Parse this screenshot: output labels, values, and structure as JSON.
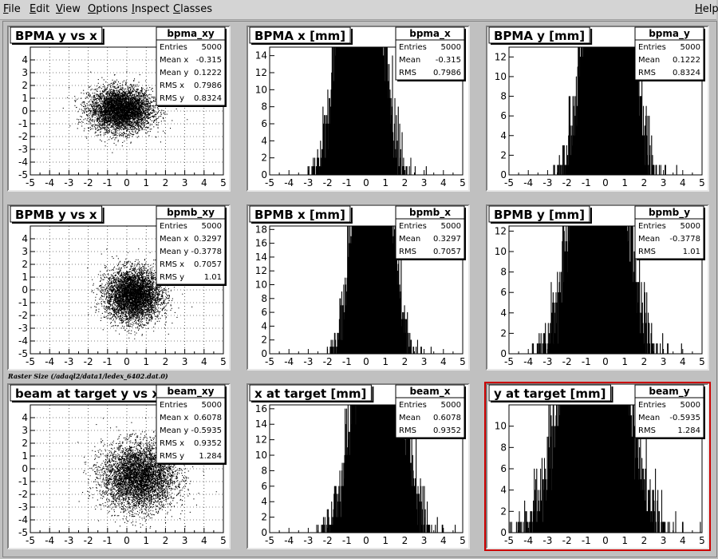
{
  "menu": {
    "file": "File",
    "edit": "Edit",
    "view": "View",
    "options": "Options",
    "inspect": "Inspect",
    "classes": "Classes",
    "help": "Help"
  },
  "caption": "Raster Size (/adaql2/data1/ledex_6402.dat.0)",
  "colors": {
    "pad_bg": "#ffffff",
    "frame_bg": "#c0c0c0",
    "selected_border": "#cc0000",
    "data": "#000000"
  },
  "chart_data": [
    {
      "id": "bpma_xy",
      "type": "scatter",
      "title": "BPMA y vs x",
      "stats_name": "bpma_xy",
      "stats": [
        [
          "Entries",
          "5000"
        ],
        [
          "Mean x",
          "-0.315"
        ],
        [
          "Mean y",
          "0.1222"
        ],
        [
          "RMS x",
          "0.7986"
        ],
        [
          "RMS y",
          "0.8324"
        ]
      ],
      "xlim": [
        -5,
        5
      ],
      "ylim": [
        -5,
        5
      ],
      "entries": 5000,
      "mean_x": -0.315,
      "mean_y": 0.1222,
      "rms_x": 0.7986,
      "rms_y": 0.8324,
      "xticks": [
        -5,
        -4,
        -3,
        -2,
        -1,
        0,
        1,
        2,
        3,
        4,
        5
      ],
      "yticks": [
        -5,
        -4,
        -3,
        -2,
        -1,
        0,
        1,
        2,
        3,
        4
      ],
      "grid": true
    },
    {
      "id": "bpma_x",
      "type": "histogram",
      "title": "BPMA x [mm]",
      "stats_name": "bpma_x",
      "stats": [
        [
          "Entries",
          "5000"
        ],
        [
          "Mean",
          "-0.315"
        ],
        [
          "RMS",
          "0.7986"
        ]
      ],
      "xlim": [
        -5,
        5
      ],
      "ylim": [
        0,
        15
      ],
      "entries": 5000,
      "mean": -0.315,
      "rms": 0.7986,
      "xticks": [
        -5,
        -4,
        -3,
        -2,
        -1,
        0,
        1,
        2,
        3,
        4,
        5
      ],
      "yticks": [
        0,
        2,
        4,
        6,
        8,
        10,
        12,
        14
      ]
    },
    {
      "id": "bpma_y",
      "type": "histogram",
      "title": "BPMA y [mm]",
      "stats_name": "bpma_y",
      "stats": [
        [
          "Entries",
          "5000"
        ],
        [
          "Mean",
          "0.1222"
        ],
        [
          "RMS",
          "0.8324"
        ]
      ],
      "xlim": [
        -5,
        5
      ],
      "ylim": [
        0,
        13
      ],
      "entries": 5000,
      "mean": 0.1222,
      "rms": 0.8324,
      "xticks": [
        -5,
        -4,
        -3,
        -2,
        -1,
        0,
        1,
        2,
        3,
        4,
        5
      ],
      "yticks": [
        0,
        2,
        4,
        6,
        8,
        10,
        12
      ]
    },
    {
      "id": "bpmb_xy",
      "type": "scatter",
      "title": "BPMB y vs x",
      "stats_name": "bpmb_xy",
      "stats": [
        [
          "Entries",
          "5000"
        ],
        [
          "Mean x",
          "0.3297"
        ],
        [
          "Mean y",
          "-0.3778"
        ],
        [
          "RMS x",
          "0.7057"
        ],
        [
          "RMS y",
          "1.01"
        ]
      ],
      "xlim": [
        -5,
        5
      ],
      "ylim": [
        -5,
        5
      ],
      "entries": 5000,
      "mean_x": 0.3297,
      "mean_y": -0.3778,
      "rms_x": 0.7057,
      "rms_y": 1.01,
      "xticks": [
        -5,
        -4,
        -3,
        -2,
        -1,
        0,
        1,
        2,
        3,
        4,
        5
      ],
      "yticks": [
        -5,
        -4,
        -3,
        -2,
        -1,
        0,
        1,
        2,
        3,
        4
      ],
      "grid": true
    },
    {
      "id": "bpmb_x",
      "type": "histogram",
      "title": "BPMB x [mm]",
      "stats_name": "bpmb_x",
      "stats": [
        [
          "Entries",
          "5000"
        ],
        [
          "Mean",
          "0.3297"
        ],
        [
          "RMS",
          "0.7057"
        ]
      ],
      "xlim": [
        -5,
        5
      ],
      "ylim": [
        0,
        18.5
      ],
      "entries": 5000,
      "mean": 0.3297,
      "rms": 0.7057,
      "xticks": [
        -5,
        -4,
        -3,
        -2,
        -1,
        0,
        1,
        2,
        3,
        4,
        5
      ],
      "yticks": [
        0,
        2,
        4,
        6,
        8,
        10,
        12,
        14,
        16,
        18
      ]
    },
    {
      "id": "bpmb_y",
      "type": "histogram",
      "title": "BPMB y [mm]",
      "stats_name": "bpmb_y",
      "stats": [
        [
          "Entries",
          "5000"
        ],
        [
          "Mean",
          "-0.3778"
        ],
        [
          "RMS",
          "1.01"
        ]
      ],
      "xlim": [
        -5,
        5
      ],
      "ylim": [
        0,
        12.5
      ],
      "entries": 5000,
      "mean": -0.3778,
      "rms": 1.01,
      "xticks": [
        -5,
        -4,
        -3,
        -2,
        -1,
        0,
        1,
        2,
        3,
        4,
        5
      ],
      "yticks": [
        0,
        2,
        4,
        6,
        8,
        10,
        12
      ]
    },
    {
      "id": "beam_xy",
      "type": "scatter",
      "title": "beam at target y vs x",
      "stats_name": "beam_xy",
      "stats": [
        [
          "Entries",
          "5000"
        ],
        [
          "Mean x",
          "0.6078"
        ],
        [
          "Mean y",
          "-0.5935"
        ],
        [
          "RMS x",
          "0.9352"
        ],
        [
          "RMS y",
          "1.284"
        ]
      ],
      "xlim": [
        -5,
        5
      ],
      "ylim": [
        -5,
        5
      ],
      "entries": 5000,
      "mean_x": 0.6078,
      "mean_y": -0.5935,
      "rms_x": 0.9352,
      "rms_y": 1.284,
      "xticks": [
        -5,
        -4,
        -3,
        -2,
        -1,
        0,
        1,
        2,
        3,
        4,
        5
      ],
      "yticks": [
        -5,
        -4,
        -3,
        -2,
        -1,
        0,
        1,
        2,
        3,
        4
      ],
      "grid": true
    },
    {
      "id": "beam_x",
      "type": "histogram",
      "title": "x at target [mm]",
      "stats_name": "beam_x",
      "stats": [
        [
          "Entries",
          "5000"
        ],
        [
          "Mean",
          "0.6078"
        ],
        [
          "RMS",
          "0.9352"
        ]
      ],
      "xlim": [
        -5,
        5
      ],
      "ylim": [
        0,
        16.5
      ],
      "entries": 5000,
      "mean": 0.6078,
      "rms": 0.9352,
      "xticks": [
        -5,
        -4,
        -3,
        -2,
        -1,
        0,
        1,
        2,
        3,
        4,
        5
      ],
      "yticks": [
        0,
        2,
        4,
        6,
        8,
        10,
        12,
        14,
        16
      ]
    },
    {
      "id": "beam_y",
      "type": "histogram",
      "title": "y at target [mm]",
      "stats_name": "beam_y",
      "stats": [
        [
          "Entries",
          "5000"
        ],
        [
          "Mean",
          "-0.5935"
        ],
        [
          "RMS",
          "1.284"
        ]
      ],
      "xlim": [
        -5,
        5
      ],
      "ylim": [
        0,
        12
      ],
      "entries": 5000,
      "mean": -0.5935,
      "rms": 1.284,
      "xticks": [
        -5,
        -4,
        -3,
        -2,
        -1,
        0,
        1,
        2,
        3,
        4,
        5
      ],
      "yticks": [
        0,
        2,
        4,
        6,
        8,
        10
      ],
      "selected": true
    }
  ]
}
